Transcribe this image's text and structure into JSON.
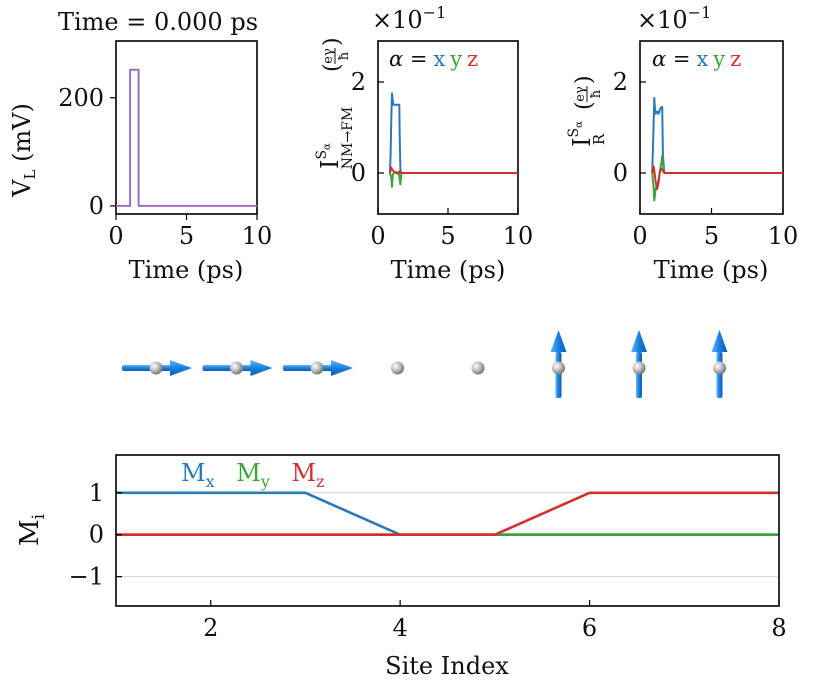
{
  "colors": {
    "voltage": "#9a6fc4",
    "x": "#2a7ab8",
    "y": "#3aa33a",
    "z": "#d03030",
    "arrow": "#1a7fe0",
    "atom": "#b4b4b4",
    "grid": "#d4d4d4"
  },
  "chart_data": [
    {
      "type": "line",
      "id": "voltage",
      "title": "Time = 0.000 ps",
      "xlabel": "Time (ps)",
      "ylabel": "V",
      "ylabel_sub": "L",
      "ylabel_unit": " (mV)",
      "xlim": [
        0,
        10
      ],
      "ylim": [
        -15,
        305
      ],
      "xticks": [
        0,
        5,
        10
      ],
      "yticks": [
        0,
        200
      ],
      "series": [
        {
          "name": "V_L",
          "color_key": "voltage",
          "x": [
            0,
            1.0,
            1.0,
            1.6,
            1.6,
            10
          ],
          "y": [
            0,
            0,
            252,
            252,
            0,
            0
          ]
        }
      ]
    },
    {
      "type": "line",
      "id": "current_nm_fm",
      "scale_label": "×10",
      "scale_exp": "−1",
      "ylabel": "I",
      "ylabel_sup": "S",
      "ylabel_sup_sub": "α",
      "ylabel_sub": "NM→FM",
      "ylabel_unit_num": "eγ",
      "ylabel_unit_den": "ħ",
      "xlabel": "Time (ps)",
      "xlim": [
        0,
        10
      ],
      "ylim": [
        -0.9,
        2.9
      ],
      "xticks": [
        0,
        5,
        10
      ],
      "yticks": [
        0,
        2
      ],
      "legend": {
        "prefix": "α =",
        "x": "x",
        "y": "y",
        "z": "z"
      },
      "series": [
        {
          "name": "x",
          "color_key": "x",
          "x": [
            0.85,
            0.9,
            0.95,
            1.0,
            1.05,
            1.1,
            1.15,
            1.2,
            1.3,
            1.45,
            1.5,
            1.52,
            1.55,
            1.6,
            1.65,
            1.7,
            2.0,
            10
          ],
          "y": [
            0,
            0.4,
            1.2,
            1.75,
            1.6,
            1.5,
            1.5,
            1.5,
            1.5,
            1.5,
            1.5,
            1.5,
            0.8,
            0.1,
            0.0,
            0.0,
            0.0,
            0.0
          ]
        },
        {
          "name": "y",
          "color_key": "y",
          "x": [
            0.85,
            0.95,
            1.0,
            1.05,
            1.15,
            1.3,
            1.4,
            1.5,
            1.55,
            1.6,
            1.65,
            1.7,
            10
          ],
          "y": [
            0,
            -0.1,
            -0.3,
            -0.05,
            0.02,
            0.0,
            -0.02,
            0.0,
            -0.15,
            -0.25,
            -0.05,
            0.0,
            0.0
          ]
        },
        {
          "name": "z",
          "color_key": "z",
          "x": [
            0.85,
            0.95,
            1.0,
            1.05,
            1.2,
            1.45,
            1.55,
            1.6,
            1.7,
            10
          ],
          "y": [
            0,
            0.12,
            0.08,
            0.06,
            0.02,
            0.01,
            0.04,
            0.01,
            0.0,
            0.0
          ]
        }
      ]
    },
    {
      "type": "line",
      "id": "current_r",
      "scale_label": "×10",
      "scale_exp": "−1",
      "ylabel": "I",
      "ylabel_sup": "S",
      "ylabel_sup_sub": "α",
      "ylabel_sub": "R",
      "ylabel_unit_num": "eγ",
      "ylabel_unit_den": "ħ",
      "xlabel": "Time (ps)",
      "xlim": [
        0,
        10
      ],
      "ylim": [
        -0.9,
        2.9
      ],
      "xticks": [
        0,
        5,
        10
      ],
      "yticks": [
        0,
        2
      ],
      "legend": {
        "prefix": "α =",
        "x": "x",
        "y": "y",
        "z": "z"
      },
      "series": [
        {
          "name": "x",
          "color_key": "x",
          "x": [
            0.85,
            0.9,
            1.0,
            1.05,
            1.1,
            1.2,
            1.3,
            1.4,
            1.5,
            1.55,
            1.6,
            1.7,
            2.0,
            10
          ],
          "y": [
            0,
            0.5,
            1.65,
            1.4,
            1.3,
            1.35,
            1.3,
            1.4,
            1.45,
            1.45,
            0.4,
            0.0,
            0.0,
            0.0
          ]
        },
        {
          "name": "y",
          "color_key": "y",
          "x": [
            0.85,
            0.95,
            1.0,
            1.1,
            1.2,
            1.3,
            1.4,
            1.5,
            1.55,
            1.6,
            1.7,
            10
          ],
          "y": [
            0,
            -0.3,
            -0.6,
            -0.35,
            -0.25,
            -0.15,
            0.05,
            0.25,
            0.38,
            0.2,
            0.0,
            0.0
          ]
        },
        {
          "name": "z",
          "color_key": "z",
          "x": [
            0.85,
            0.95,
            1.0,
            1.1,
            1.2,
            1.3,
            1.4,
            1.5,
            1.6,
            1.7,
            10
          ],
          "y": [
            0,
            0.15,
            0.05,
            -0.2,
            -0.35,
            -0.2,
            0.05,
            0.1,
            0.05,
            0.0,
            0.0
          ]
        }
      ]
    },
    {
      "type": "line",
      "id": "magnetization",
      "xlabel": "Site Index",
      "ylabel": "M",
      "ylabel_sub": "i",
      "xlim": [
        1,
        8
      ],
      "ylim": [
        -1.7,
        1.9
      ],
      "xticks": [
        2,
        4,
        6,
        8
      ],
      "yticks": [
        -1,
        0,
        1
      ],
      "ytick_labels": [
        "−1",
        "0",
        "1"
      ],
      "grid_y": [
        -1,
        0,
        1
      ],
      "legend": [
        {
          "label": "M",
          "sub": "x",
          "color_key": "x"
        },
        {
          "label": "M",
          "sub": "y",
          "color_key": "y"
        },
        {
          "label": "M",
          "sub": "z",
          "color_key": "z"
        }
      ],
      "series": [
        {
          "name": "M_x",
          "color_key": "x",
          "x": [
            1,
            3,
            4,
            8
          ],
          "y": [
            1,
            1,
            0,
            0
          ]
        },
        {
          "name": "M_y",
          "color_key": "y",
          "x": [
            1,
            8
          ],
          "y": [
            0,
            0
          ]
        },
        {
          "name": "M_z",
          "color_key": "z",
          "x": [
            1,
            5,
            6,
            8
          ],
          "y": [
            0,
            0,
            1,
            1
          ]
        }
      ]
    }
  ],
  "spin_chain": {
    "sites": [
      {
        "index": 1,
        "spin": "x"
      },
      {
        "index": 2,
        "spin": "x"
      },
      {
        "index": 3,
        "spin": "x"
      },
      {
        "index": 4,
        "spin": "none"
      },
      {
        "index": 5,
        "spin": "none"
      },
      {
        "index": 6,
        "spin": "z"
      },
      {
        "index": 7,
        "spin": "z"
      },
      {
        "index": 8,
        "spin": "z"
      }
    ]
  }
}
